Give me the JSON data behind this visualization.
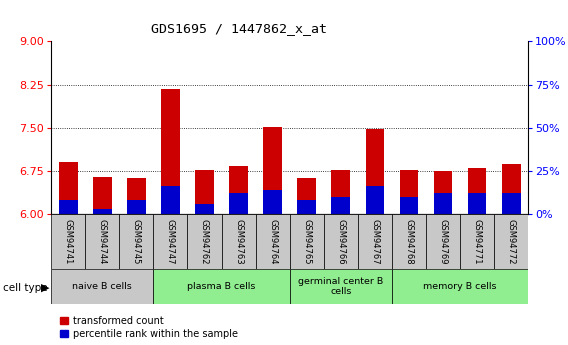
{
  "title": "GDS1695 / 1447862_x_at",
  "samples": [
    "GSM94741",
    "GSM94744",
    "GSM94745",
    "GSM94747",
    "GSM94762",
    "GSM94763",
    "GSM94764",
    "GSM94765",
    "GSM94766",
    "GSM94767",
    "GSM94768",
    "GSM94769",
    "GSM94771",
    "GSM94772"
  ],
  "transformed_count": [
    6.9,
    6.65,
    6.62,
    8.18,
    6.77,
    6.83,
    7.52,
    6.62,
    6.77,
    7.48,
    6.77,
    6.75,
    6.8,
    6.87
  ],
  "percentile_rank": [
    8,
    3,
    8,
    16,
    6,
    12,
    14,
    8,
    10,
    16,
    10,
    12,
    12,
    12
  ],
  "ylim_left": [
    6,
    9
  ],
  "ylim_right": [
    0,
    100
  ],
  "yticks_left": [
    6,
    6.75,
    7.5,
    8.25,
    9
  ],
  "yticks_right": [
    0,
    25,
    50,
    75,
    100
  ],
  "bar_color_red": "#cc0000",
  "bar_color_blue": "#0000cc",
  "bar_width": 0.55,
  "base_value": 6.0,
  "background_color": "#ffffff",
  "tick_bg_color": "#c8c8c8",
  "groups": [
    {
      "label": "naive B cells",
      "start": 0,
      "end": 2,
      "color": "#c8c8c8"
    },
    {
      "label": "plasma B cells",
      "start": 3,
      "end": 6,
      "color": "#90ee90"
    },
    {
      "label": "germinal center B\ncells",
      "start": 7,
      "end": 9,
      "color": "#90ee90"
    },
    {
      "label": "memory B cells",
      "start": 10,
      "end": 13,
      "color": "#90ee90"
    }
  ]
}
